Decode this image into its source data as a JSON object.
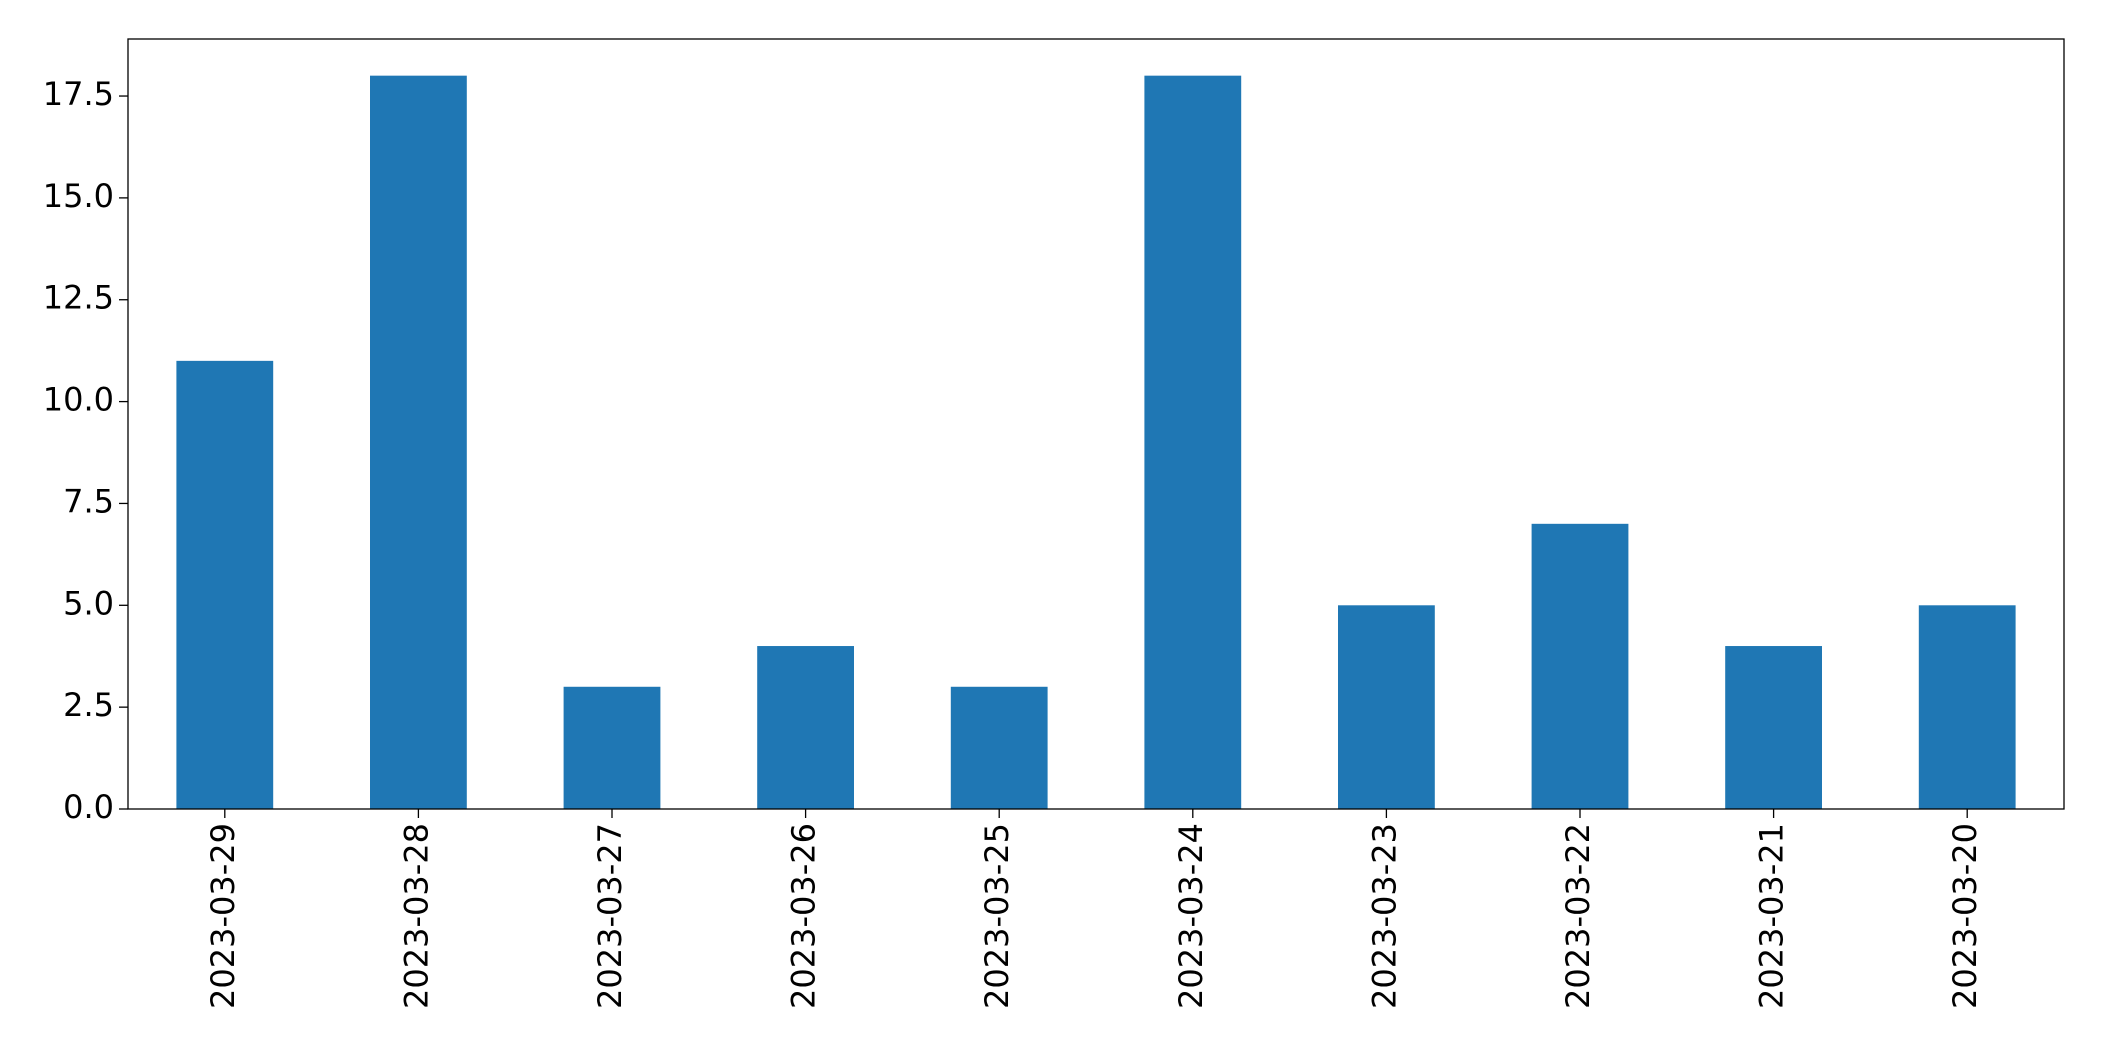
{
  "chart_data": {
    "type": "bar",
    "categories": [
      "2023-03-29",
      "2023-03-28",
      "2023-03-27",
      "2023-03-26",
      "2023-03-25",
      "2023-03-24",
      "2023-03-23",
      "2023-03-22",
      "2023-03-21",
      "2023-03-20"
    ],
    "values": [
      11,
      18,
      3,
      4,
      3,
      18,
      5,
      7,
      4,
      5
    ],
    "color": "#1f77b4",
    "ylim": [
      0,
      18.9
    ],
    "yticks": [
      {
        "value": 0,
        "label": "0.0"
      },
      2.5,
      {
        "value": 5,
        "label": "5.0"
      },
      7.5,
      {
        "value": 10,
        "label": "10.0"
      },
      12.5,
      {
        "value": 15,
        "label": "15.0"
      },
      17.5
    ],
    "grid": false
  }
}
